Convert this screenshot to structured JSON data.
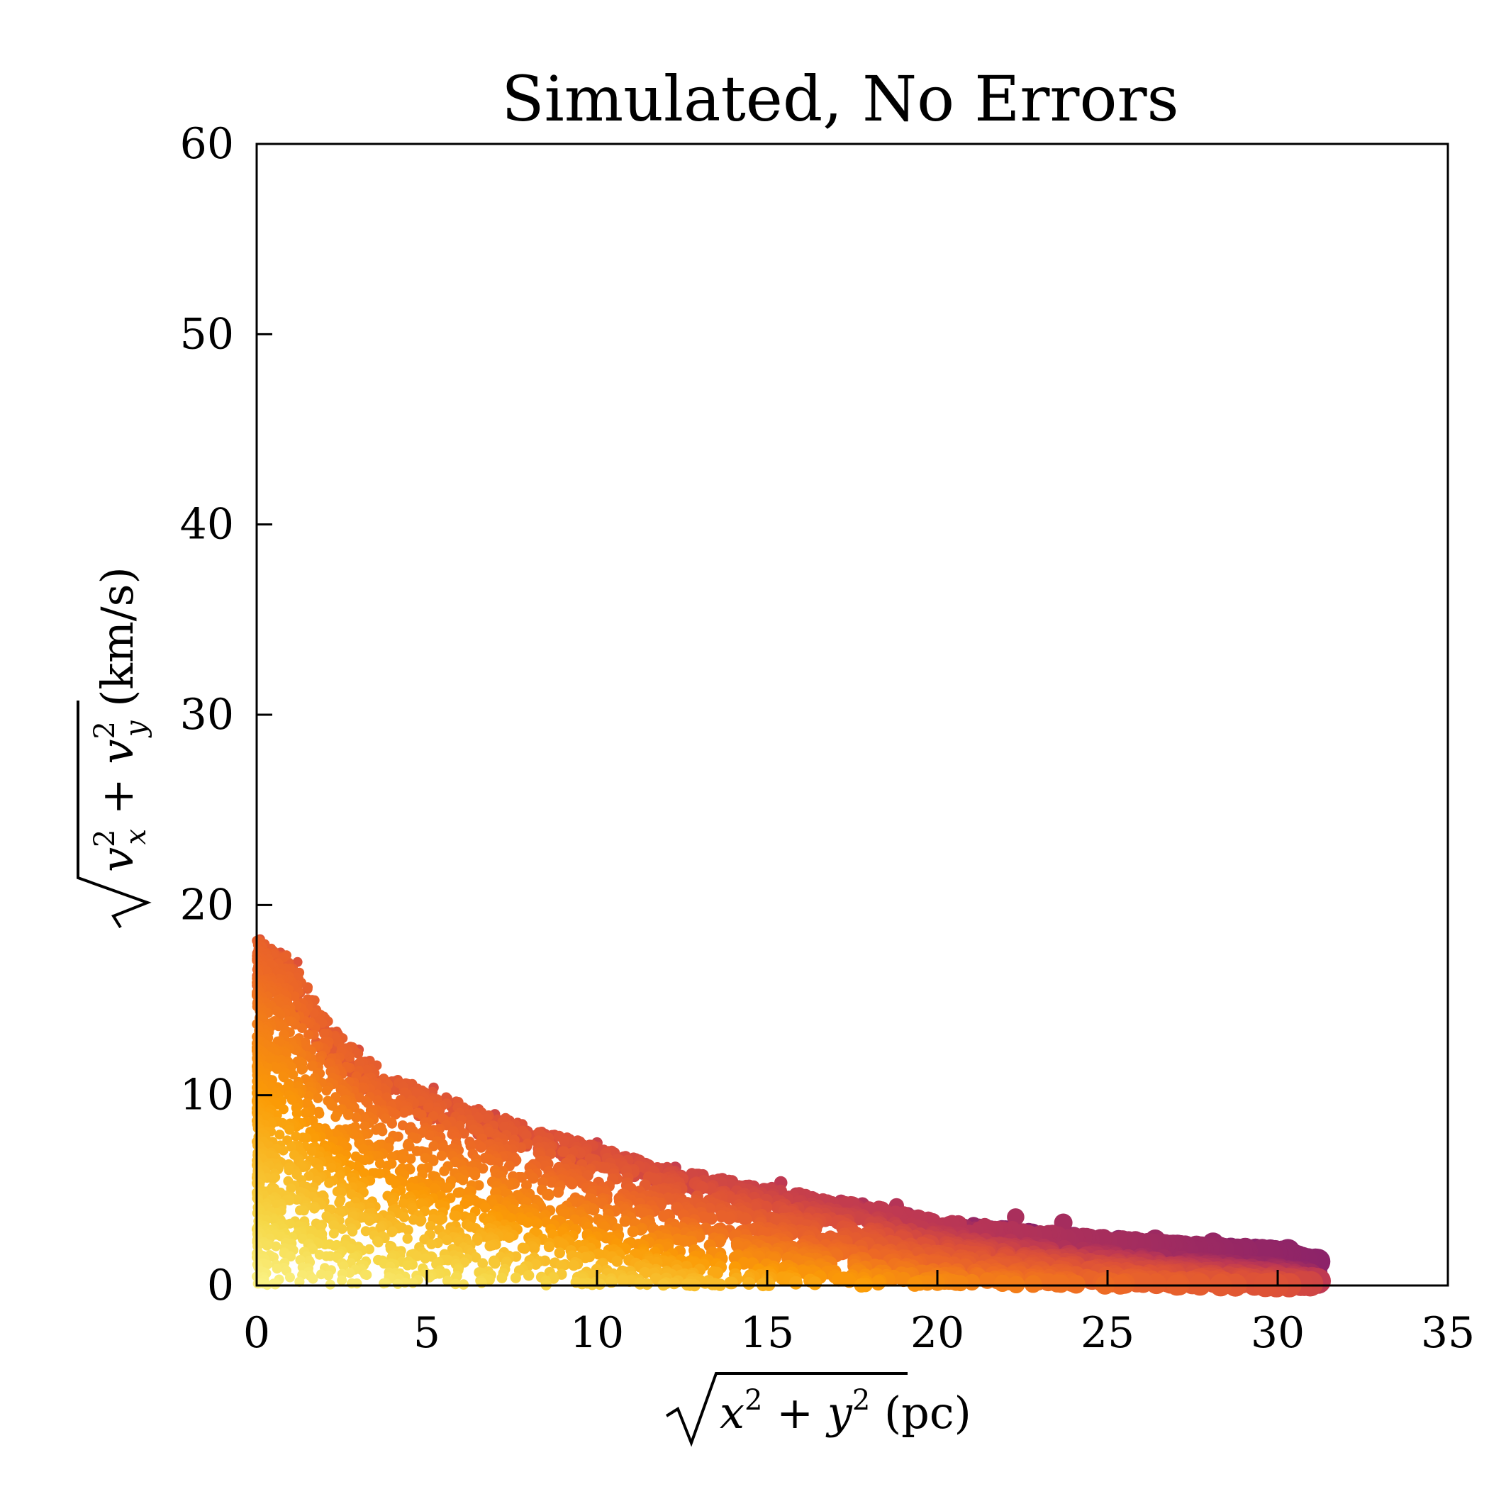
{
  "chart_data": {
    "type": "scatter",
    "title": "Simulated, No Errors",
    "xlabel": "√(x² + y²) (pc)",
    "ylabel": "√(v_x² + v_y²) (km/s)",
    "xlim": [
      0,
      35
    ],
    "ylim": [
      0,
      60
    ],
    "x_ticks": [
      0,
      5,
      10,
      15,
      20,
      25,
      30,
      35
    ],
    "y_ticks": [
      0,
      10,
      20,
      30,
      40,
      50,
      60
    ],
    "grid": false,
    "colormap": "inferno",
    "colors": {
      "low": "#fcffa4",
      "mid": "#f98e09",
      "high": "#e35933",
      "max": "#8c2369"
    },
    "envelope": [
      [
        0,
        18.2
      ],
      [
        1,
        17.3
      ],
      [
        2,
        14.2
      ],
      [
        3,
        12.2
      ],
      [
        4,
        11.0
      ],
      [
        5,
        10.3
      ],
      [
        6,
        9.6
      ],
      [
        8,
        8.4
      ],
      [
        10,
        7.3
      ],
      [
        12,
        6.2
      ],
      [
        14,
        5.5
      ],
      [
        16,
        4.8
      ],
      [
        18,
        4.2
      ],
      [
        20,
        3.4
      ],
      [
        22,
        3.0
      ],
      [
        24,
        2.6
      ],
      [
        26,
        2.3
      ],
      [
        28,
        2.0
      ],
      [
        30,
        1.8
      ],
      [
        31,
        1.3
      ]
    ],
    "x_max_observed": 31.2,
    "sample_points": [
      {
        "x": 0.1,
        "y": 18.2
      },
      {
        "x": 0.7,
        "y": 17.5
      },
      {
        "x": 1.2,
        "y": 17.0
      },
      {
        "x": 2.0,
        "y": 13.8
      },
      {
        "x": 3.0,
        "y": 12.4
      },
      {
        "x": 5.2,
        "y": 10.4
      },
      {
        "x": 7.0,
        "y": 9.0
      },
      {
        "x": 10.0,
        "y": 7.5
      },
      {
        "x": 12.3,
        "y": 6.2
      },
      {
        "x": 15.4,
        "y": 5.4
      },
      {
        "x": 18.8,
        "y": 4.2
      },
      {
        "x": 22.3,
        "y": 3.6
      },
      {
        "x": 23.7,
        "y": 3.3
      },
      {
        "x": 26.4,
        "y": 2.4
      },
      {
        "x": 28.1,
        "y": 2.2
      },
      {
        "x": 29.5,
        "y": 1.3
      },
      {
        "x": 30.3,
        "y": 1.8
      },
      {
        "x": 31.0,
        "y": 0.6
      }
    ]
  }
}
